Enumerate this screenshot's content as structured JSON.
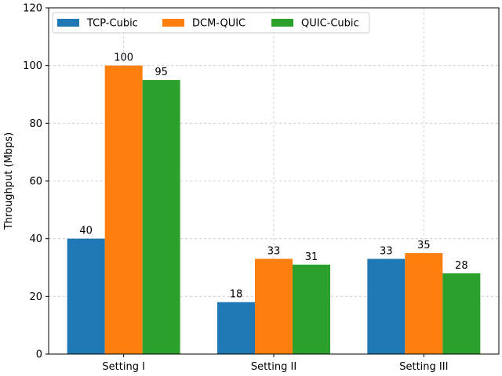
{
  "chart_data": {
    "type": "bar",
    "categories": [
      "Setting I",
      "Setting II",
      "Setting III"
    ],
    "series": [
      {
        "name": "TCP-Cubic",
        "color": "#1f77b4",
        "values": [
          40,
          18,
          33
        ]
      },
      {
        "name": "DCM-QUIC",
        "color": "#ff7f0e",
        "values": [
          100,
          33,
          35
        ]
      },
      {
        "name": "QUIC-Cubic",
        "color": "#2ca02c",
        "values": [
          95,
          31,
          28
        ]
      }
    ],
    "xlabel": "",
    "ylabel": "Throughput (Mbps)",
    "ylim": [
      0,
      120
    ],
    "yticks": [
      0,
      20,
      40,
      60,
      80,
      100,
      120
    ],
    "grid": true,
    "legend_position": "top-left",
    "data_labels": true
  }
}
